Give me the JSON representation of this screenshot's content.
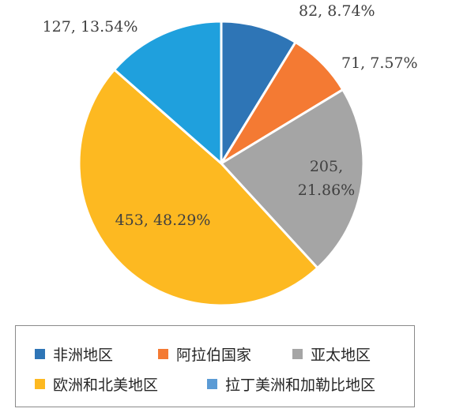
{
  "chart_data": {
    "type": "pie",
    "categories": [
      "非洲地区",
      "阿拉伯国家",
      "亚太地区",
      "欧洲和北美地区",
      "拉丁美洲和加勒比地区"
    ],
    "values": [
      82,
      71,
      205,
      453,
      127
    ],
    "percentages": [
      "8.74%",
      "7.57%",
      "21.86%",
      "48.29%",
      "13.54%"
    ],
    "labels": [
      [
        "82, 8.74%"
      ],
      [
        "71, 7.57%"
      ],
      [
        "205,",
        "21.86%"
      ],
      [
        "453, 48.29%"
      ],
      [
        "127, 13.54%"
      ]
    ],
    "colors": [
      "#2e75b6",
      "#f47a33",
      "#a5a5a5",
      "#fdb921",
      "#1fa0dd"
    ],
    "legend_colors": [
      "#2e75b6",
      "#f47a33",
      "#a5a5a5",
      "#fdb921",
      "#5b9bd5"
    ],
    "start_angle": "12 o'clock",
    "direction": "clockwise",
    "legend_position": "bottom",
    "title": ""
  }
}
